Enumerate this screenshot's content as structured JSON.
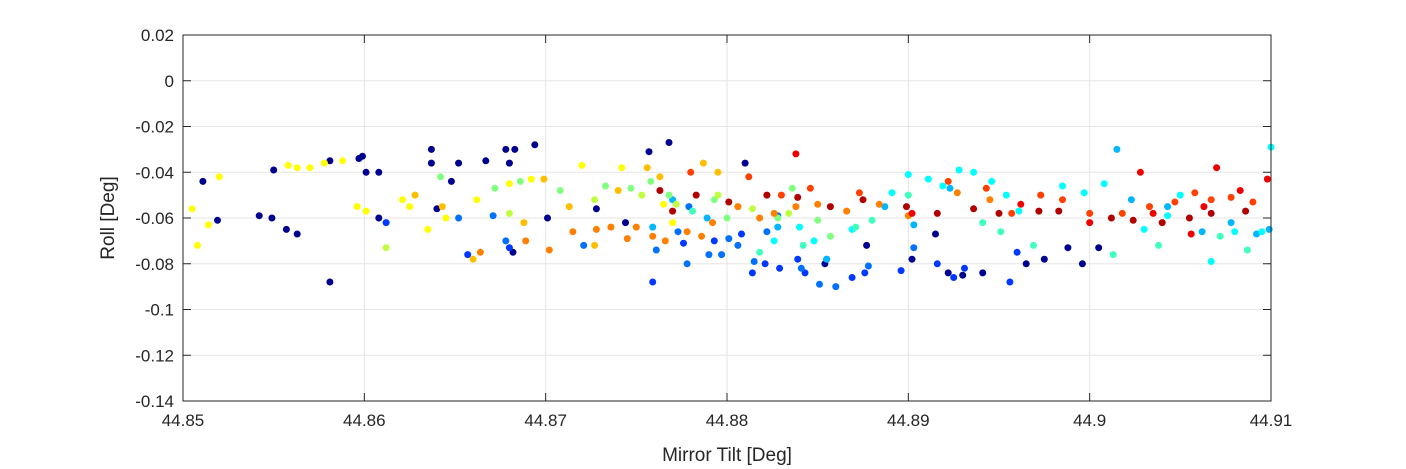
{
  "chart_data": {
    "type": "scatter",
    "title": "",
    "xlabel": "Mirror Tilt [Deg]",
    "ylabel": "Roll [Deg]",
    "xlim": [
      44.85,
      44.91
    ],
    "ylim": [
      -0.14,
      0.02
    ],
    "x_ticks": [
      44.85,
      44.86,
      44.87,
      44.88,
      44.89,
      44.9,
      44.91
    ],
    "x_tick_labels": [
      "44.85",
      "44.86",
      "44.87",
      "44.88",
      "44.89",
      "44.9",
      "44.91"
    ],
    "y_ticks": [
      0.02,
      0,
      -0.02,
      -0.04,
      -0.06,
      -0.08,
      -0.1,
      -0.12,
      -0.14
    ],
    "y_tick_labels": [
      "0.02",
      "0",
      "-0.02",
      "-0.04",
      "-0.06",
      "-0.08",
      "-0.1",
      "-0.12",
      "-0.14"
    ],
    "grid": true,
    "series": [
      {
        "color": "#00008F",
        "points": [
          [
            44.8511,
            -0.044
          ],
          [
            44.8519,
            -0.061
          ],
          [
            44.8542,
            -0.059
          ],
          [
            44.8549,
            -0.06
          ],
          [
            44.855,
            -0.039
          ],
          [
            44.8557,
            -0.065
          ],
          [
            44.8563,
            -0.067
          ],
          [
            44.8581,
            -0.035
          ],
          [
            44.8581,
            -0.088
          ],
          [
            44.8597,
            -0.034
          ],
          [
            44.8599,
            -0.033
          ],
          [
            44.8601,
            -0.04
          ],
          [
            44.8608,
            -0.06
          ],
          [
            44.8608,
            -0.04
          ],
          [
            44.8637,
            -0.036
          ],
          [
            44.8637,
            -0.03
          ],
          [
            44.864,
            -0.056
          ],
          [
            44.8648,
            -0.044
          ],
          [
            44.8652,
            -0.036
          ],
          [
            44.8667,
            -0.035
          ],
          [
            44.8678,
            -0.03
          ],
          [
            44.868,
            -0.036
          ],
          [
            44.8682,
            -0.075
          ],
          [
            44.8683,
            -0.03
          ],
          [
            44.8694,
            -0.028
          ],
          [
            44.8701,
            -0.06
          ],
          [
            44.8728,
            -0.056
          ],
          [
            44.8744,
            -0.062
          ],
          [
            44.8757,
            -0.031
          ],
          [
            44.8768,
            -0.027
          ],
          [
            44.881,
            -0.036
          ],
          [
            44.8854,
            -0.08
          ],
          [
            44.8877,
            -0.072
          ],
          [
            44.8902,
            -0.078
          ],
          [
            44.8915,
            -0.067
          ],
          [
            44.8922,
            -0.084
          ],
          [
            44.893,
            -0.085
          ],
          [
            44.8941,
            -0.084
          ],
          [
            44.8965,
            -0.08
          ],
          [
            44.8975,
            -0.078
          ],
          [
            44.8988,
            -0.073
          ],
          [
            44.8996,
            -0.08
          ],
          [
            44.9005,
            -0.073
          ]
        ]
      },
      {
        "color": "#0038FF",
        "points": [
          [
            44.8612,
            -0.062
          ],
          [
            44.8657,
            -0.076
          ],
          [
            44.868,
            -0.073
          ],
          [
            44.8759,
            -0.088
          ],
          [
            44.8776,
            -0.071
          ],
          [
            44.8793,
            -0.07
          ],
          [
            44.8808,
            -0.067
          ],
          [
            44.8814,
            -0.084
          ],
          [
            44.8821,
            -0.08
          ],
          [
            44.8829,
            -0.082
          ],
          [
            44.8839,
            -0.078
          ],
          [
            44.8843,
            -0.084
          ],
          [
            44.8855,
            -0.078
          ],
          [
            44.8869,
            -0.086
          ],
          [
            44.8876,
            -0.084
          ],
          [
            44.8896,
            -0.083
          ],
          [
            44.8916,
            -0.08
          ],
          [
            44.8925,
            -0.086
          ],
          [
            44.8931,
            -0.082
          ],
          [
            44.8956,
            -0.088
          ],
          [
            44.896,
            -0.075
          ]
        ]
      },
      {
        "color": "#0070FF",
        "points": [
          [
            44.8652,
            -0.06
          ],
          [
            44.8671,
            -0.059
          ],
          [
            44.8678,
            -0.07
          ],
          [
            44.8721,
            -0.072
          ],
          [
            44.8761,
            -0.074
          ],
          [
            44.8773,
            -0.066
          ],
          [
            44.8778,
            -0.08
          ],
          [
            44.8779,
            -0.055
          ],
          [
            44.879,
            -0.076
          ],
          [
            44.8797,
            -0.076
          ],
          [
            44.8801,
            -0.069
          ],
          [
            44.8806,
            -0.072
          ],
          [
            44.8815,
            -0.079
          ],
          [
            44.8822,
            -0.066
          ],
          [
            44.8828,
            -0.059
          ],
          [
            44.8841,
            -0.082
          ],
          [
            44.8851,
            -0.089
          ],
          [
            44.886,
            -0.09
          ],
          [
            44.8878,
            -0.081
          ],
          [
            44.8903,
            -0.073
          ]
        ]
      },
      {
        "color": "#00B7FF",
        "points": [
          [
            44.8759,
            -0.064
          ],
          [
            44.877,
            -0.052
          ],
          [
            44.8789,
            -0.06
          ],
          [
            44.8828,
            -0.064
          ],
          [
            44.8855,
            -0.078
          ],
          [
            44.8887,
            -0.055
          ],
          [
            44.8903,
            -0.063
          ],
          [
            44.8923,
            -0.047
          ],
          [
            44.9015,
            -0.03
          ],
          [
            44.9023,
            -0.052
          ],
          [
            44.9043,
            -0.055
          ],
          [
            44.9062,
            -0.066
          ],
          [
            44.9078,
            -0.062
          ],
          [
            44.9092,
            -0.067
          ],
          [
            44.9099,
            -0.065
          ]
        ]
      },
      {
        "color": "#00FFFF",
        "points": [
          [
            44.8826,
            -0.07
          ],
          [
            44.884,
            -0.064
          ],
          [
            44.8848,
            -0.07
          ],
          [
            44.8869,
            -0.065
          ],
          [
            44.8891,
            -0.049
          ],
          [
            44.89,
            -0.041
          ],
          [
            44.8911,
            -0.043
          ],
          [
            44.8919,
            -0.046
          ],
          [
            44.8928,
            -0.039
          ],
          [
            44.8936,
            -0.04
          ],
          [
            44.8946,
            -0.044
          ],
          [
            44.8954,
            -0.05
          ],
          [
            44.8961,
            -0.057
          ],
          [
            44.8985,
            -0.046
          ],
          [
            44.8997,
            -0.049
          ],
          [
            44.9008,
            -0.045
          ],
          [
            44.903,
            -0.065
          ],
          [
            44.9043,
            -0.059
          ],
          [
            44.905,
            -0.05
          ],
          [
            44.9067,
            -0.079
          ],
          [
            44.908,
            -0.066
          ],
          [
            44.9095,
            -0.066
          ],
          [
            44.91,
            -0.029
          ]
        ]
      },
      {
        "color": "#40FFBF",
        "points": [
          [
            44.8781,
            -0.057
          ],
          [
            44.8818,
            -0.075
          ],
          [
            44.8842,
            -0.072
          ],
          [
            44.8871,
            -0.064
          ],
          [
            44.888,
            -0.061
          ],
          [
            44.89,
            -0.05
          ],
          [
            44.8941,
            -0.062
          ],
          [
            44.8951,
            -0.066
          ],
          [
            44.8969,
            -0.072
          ],
          [
            44.9013,
            -0.076
          ],
          [
            44.9038,
            -0.072
          ],
          [
            44.9072,
            -0.068
          ],
          [
            44.9087,
            -0.074
          ]
        ]
      },
      {
        "color": "#80FF80",
        "points": [
          [
            44.8642,
            -0.042
          ],
          [
            44.8672,
            -0.047
          ],
          [
            44.8686,
            -0.044
          ],
          [
            44.8708,
            -0.048
          ],
          [
            44.8733,
            -0.046
          ],
          [
            44.8747,
            -0.047
          ],
          [
            44.8758,
            -0.044
          ],
          [
            44.8768,
            -0.05
          ],
          [
            44.8793,
            -0.052
          ],
          [
            44.88,
            -0.06
          ],
          [
            44.8828,
            -0.06
          ],
          [
            44.8836,
            -0.047
          ],
          [
            44.885,
            -0.061
          ],
          [
            44.8857,
            -0.068
          ]
        ]
      },
      {
        "color": "#BFFF40",
        "points": [
          [
            44.8612,
            -0.073
          ],
          [
            44.868,
            -0.058
          ],
          [
            44.8727,
            -0.052
          ],
          [
            44.8753,
            -0.05
          ],
          [
            44.8772,
            -0.054
          ],
          [
            44.8795,
            -0.05
          ],
          [
            44.8814,
            -0.056
          ],
          [
            44.8834,
            -0.058
          ]
        ]
      },
      {
        "color": "#FFFF00",
        "points": [
          [
            44.8505,
            -0.056
          ],
          [
            44.8508,
            -0.072
          ],
          [
            44.8514,
            -0.063
          ],
          [
            44.852,
            -0.042
          ],
          [
            44.8558,
            -0.037
          ],
          [
            44.8563,
            -0.038
          ],
          [
            44.857,
            -0.038
          ],
          [
            44.8578,
            -0.036
          ],
          [
            44.8588,
            -0.035
          ],
          [
            44.8596,
            -0.055
          ],
          [
            44.8601,
            -0.057
          ],
          [
            44.8621,
            -0.052
          ],
          [
            44.8625,
            -0.055
          ],
          [
            44.8635,
            -0.065
          ],
          [
            44.8645,
            -0.06
          ],
          [
            44.8662,
            -0.052
          ],
          [
            44.868,
            -0.045
          ],
          [
            44.8692,
            -0.043
          ],
          [
            44.872,
            -0.037
          ],
          [
            44.8742,
            -0.038
          ],
          [
            44.8765,
            -0.054
          ],
          [
            44.877,
            -0.062
          ]
        ]
      },
      {
        "color": "#FFBF00",
        "points": [
          [
            44.8628,
            -0.05
          ],
          [
            44.8643,
            -0.055
          ],
          [
            44.866,
            -0.078
          ],
          [
            44.8688,
            -0.062
          ],
          [
            44.8699,
            -0.043
          ],
          [
            44.8713,
            -0.055
          ],
          [
            44.8727,
            -0.072
          ],
          [
            44.874,
            -0.048
          ],
          [
            44.8756,
            -0.038
          ],
          [
            44.8763,
            -0.042
          ],
          [
            44.8787,
            -0.036
          ],
          [
            44.8795,
            -0.04
          ],
          [
            44.8806,
            -0.055
          ]
        ]
      },
      {
        "color": "#FF8000",
        "points": [
          [
            44.8664,
            -0.075
          ],
          [
            44.8689,
            -0.07
          ],
          [
            44.8702,
            -0.074
          ],
          [
            44.8715,
            -0.066
          ],
          [
            44.8728,
            -0.065
          ],
          [
            44.8736,
            -0.064
          ],
          [
            44.8745,
            -0.069
          ],
          [
            44.875,
            -0.064
          ],
          [
            44.8759,
            -0.068
          ],
          [
            44.8766,
            -0.07
          ],
          [
            44.8778,
            -0.066
          ],
          [
            44.8786,
            -0.068
          ],
          [
            44.8792,
            -0.062
          ],
          [
            44.8806,
            -0.055
          ],
          [
            44.8818,
            -0.06
          ],
          [
            44.8826,
            -0.058
          ],
          [
            44.8838,
            -0.055
          ],
          [
            44.885,
            -0.054
          ],
          [
            44.8866,
            -0.057
          ],
          [
            44.8884,
            -0.054
          ],
          [
            44.89,
            -0.059
          ],
          [
            44.8927,
            -0.049
          ],
          [
            44.8945,
            -0.052
          ]
        ]
      },
      {
        "color": "#FF4000",
        "points": [
          [
            44.878,
            -0.04
          ],
          [
            44.8812,
            -0.042
          ],
          [
            44.883,
            -0.05
          ],
          [
            44.8846,
            -0.047
          ],
          [
            44.8873,
            -0.049
          ],
          [
            44.8922,
            -0.044
          ],
          [
            44.8943,
            -0.047
          ],
          [
            44.8957,
            -0.058
          ],
          [
            44.8973,
            -0.05
          ],
          [
            44.8985,
            -0.052
          ],
          [
            44.9,
            -0.058
          ],
          [
            44.9018,
            -0.058
          ],
          [
            44.9033,
            -0.055
          ],
          [
            44.9047,
            -0.053
          ],
          [
            44.9058,
            -0.049
          ],
          [
            44.9067,
            -0.052
          ],
          [
            44.9078,
            -0.051
          ],
          [
            44.909,
            -0.053
          ]
        ]
      },
      {
        "color": "#EE0000",
        "points": [
          [
            44.8838,
            -0.032
          ],
          [
            44.8902,
            -0.058
          ],
          [
            44.8962,
            -0.054
          ],
          [
            44.9,
            -0.062
          ],
          [
            44.9028,
            -0.04
          ],
          [
            44.9035,
            -0.058
          ],
          [
            44.9056,
            -0.067
          ],
          [
            44.9063,
            -0.055
          ],
          [
            44.907,
            -0.038
          ],
          [
            44.9083,
            -0.048
          ],
          [
            44.9098,
            -0.043
          ]
        ]
      },
      {
        "color": "#B00000",
        "points": [
          [
            44.8763,
            -0.048
          ],
          [
            44.877,
            -0.057
          ],
          [
            44.8783,
            -0.05
          ],
          [
            44.8801,
            -0.053
          ],
          [
            44.8822,
            -0.05
          ],
          [
            44.8839,
            -0.051
          ],
          [
            44.8857,
            -0.055
          ],
          [
            44.8875,
            -0.052
          ],
          [
            44.8899,
            -0.055
          ],
          [
            44.8916,
            -0.058
          ],
          [
            44.8936,
            -0.056
          ],
          [
            44.895,
            -0.058
          ],
          [
            44.8972,
            -0.057
          ],
          [
            44.8983,
            -0.057
          ],
          [
            44.9012,
            -0.06
          ],
          [
            44.9024,
            -0.061
          ],
          [
            44.904,
            -0.062
          ],
          [
            44.9055,
            -0.06
          ],
          [
            44.9067,
            -0.058
          ],
          [
            44.9086,
            -0.057
          ]
        ]
      }
    ]
  }
}
